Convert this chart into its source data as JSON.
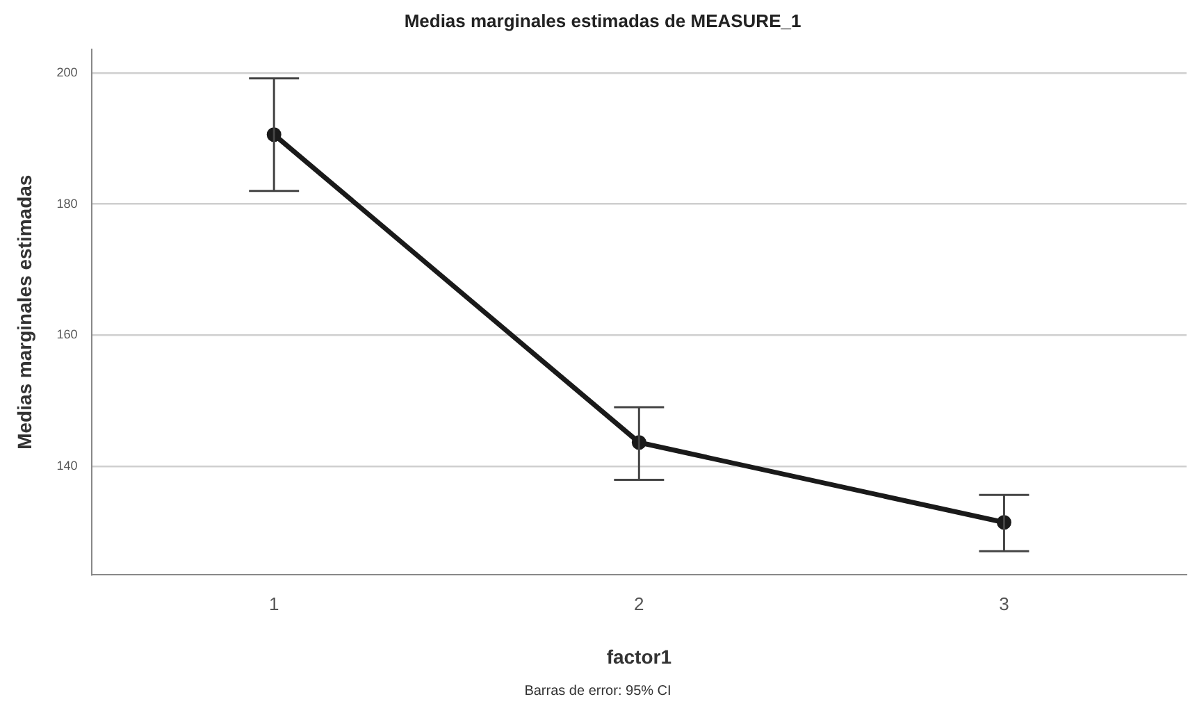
{
  "chart_data": {
    "type": "line",
    "title": "Medias marginales estimadas de MEASURE_1",
    "xlabel": "factor1",
    "ylabel": "Medias marginales estimadas",
    "categories": [
      "1",
      "2",
      "3"
    ],
    "series": [
      {
        "color": "#1a1a1a",
        "values": [
          190.6,
          143.6,
          131.4
        ],
        "errors": [
          [
            182.0,
            199.2
          ],
          [
            137.9,
            149.0
          ],
          [
            127.0,
            135.6
          ]
        ]
      }
    ],
    "ylim": [
      123.4,
      203.6
    ],
    "yticks": [
      140,
      160,
      180,
      200
    ],
    "grid": "y",
    "marker": "circle",
    "line_style": "solid",
    "legend": false,
    "annotations": [
      "Barras de error: 95% CI"
    ]
  }
}
